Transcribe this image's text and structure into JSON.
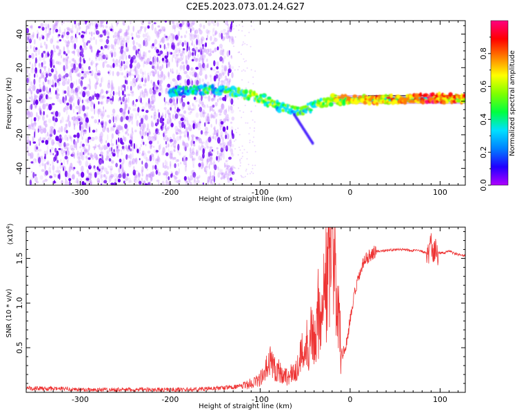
{
  "title": "C2E5.2023.073.01.24.G27",
  "chart_data": [
    {
      "type": "heatmap",
      "xlabel": "Height of straight line (km)",
      "ylabel": "Frequency (Hz)",
      "xlim": [
        -360,
        128
      ],
      "ylim": [
        -50,
        48
      ],
      "xticks": [
        -300,
        -200,
        -100,
        0,
        100
      ],
      "yticks": [
        -40,
        -20,
        0,
        20,
        40
      ],
      "colorbar": {
        "label": "Normalized spectral amplitude",
        "range": [
          0,
          1
        ],
        "ticks": [
          "0.0",
          "0.2",
          "0.4",
          "0.6",
          "0.8"
        ],
        "colors": [
          "#b000ff",
          "#2000ff",
          "#0080ff",
          "#00e0ff",
          "#00ff40",
          "#80ff00",
          "#ffff00",
          "#ff8000",
          "#ff0000",
          "#ff0080"
        ]
      },
      "features": {
        "noise_region": {
          "x": [
            -360,
            -130
          ],
          "y": [
            -50,
            48
          ],
          "amplitude": 0.05
        },
        "signal_track": [
          {
            "x": -200,
            "f": 6,
            "amp": 0.3
          },
          {
            "x": -150,
            "f": 7,
            "amp": 0.35
          },
          {
            "x": -120,
            "f": 5,
            "amp": 0.45
          },
          {
            "x": -100,
            "f": 2,
            "amp": 0.5
          },
          {
            "x": -80,
            "f": -3,
            "amp": 0.45
          },
          {
            "x": -60,
            "f": -6,
            "amp": 0.4
          },
          {
            "x": -40,
            "f": -3,
            "amp": 0.45
          },
          {
            "x": -20,
            "f": 1,
            "amp": 0.6
          },
          {
            "x": 0,
            "f": 1,
            "amp": 0.65
          },
          {
            "x": 50,
            "f": 1,
            "amp": 0.75
          },
          {
            "x": 90,
            "f": 2,
            "amp": 0.8
          },
          {
            "x": 128,
            "f": 1,
            "amp": 0.75
          }
        ],
        "carrier_band": {
          "x": [
            -20,
            128
          ],
          "f": [
            -0.5,
            2.5
          ]
        }
      }
    },
    {
      "type": "line",
      "xlabel": "Height of straight line (km)",
      "ylabel": "SNR (10 * v/v)",
      "y_multiplier": "(x10",
      "y_multiplier_exp": "4",
      "y_multiplier_close": ")",
      "xlim": [
        -360,
        128
      ],
      "ylim": [
        0,
        1.85
      ],
      "xticks": [
        -300,
        -200,
        -100,
        0,
        100
      ],
      "yticks": [
        "0.5",
        "1.0",
        "1.5"
      ],
      "line_color": "#ee3333",
      "series": [
        {
          "x": [
            -360,
            -340,
            -320,
            -300,
            -280,
            -260,
            -240,
            -220,
            -200,
            -180,
            -160,
            -140,
            -130,
            -120,
            -110,
            -100,
            -95,
            -90,
            -85,
            -80,
            -75,
            -70,
            -65,
            -60,
            -55,
            -50,
            -45,
            -40,
            -35,
            -30,
            -25,
            -20,
            -17,
            -15,
            -12,
            -10,
            -5,
            0,
            5,
            10,
            15,
            20,
            25,
            30,
            40,
            50,
            60,
            70,
            80,
            85,
            88,
            90,
            92,
            94,
            96,
            100,
            105,
            110,
            115,
            120,
            128
          ],
          "y": [
            0.05,
            0.04,
            0.04,
            0.03,
            0.03,
            0.03,
            0.03,
            0.03,
            0.03,
            0.03,
            0.04,
            0.05,
            0.06,
            0.07,
            0.1,
            0.15,
            0.2,
            0.35,
            0.3,
            0.25,
            0.2,
            0.18,
            0.2,
            0.25,
            0.4,
            0.5,
            0.6,
            0.7,
            0.9,
            1.1,
            1.3,
            1.5,
            1.7,
            1.0,
            0.8,
            0.4,
            0.5,
            0.8,
            1.1,
            1.3,
            1.45,
            1.52,
            1.56,
            1.58,
            1.59,
            1.6,
            1.6,
            1.59,
            1.58,
            1.55,
            1.6,
            1.7,
            1.45,
            1.6,
            1.58,
            1.56,
            1.56,
            1.58,
            1.56,
            1.54,
            1.53
          ]
        }
      ]
    }
  ]
}
